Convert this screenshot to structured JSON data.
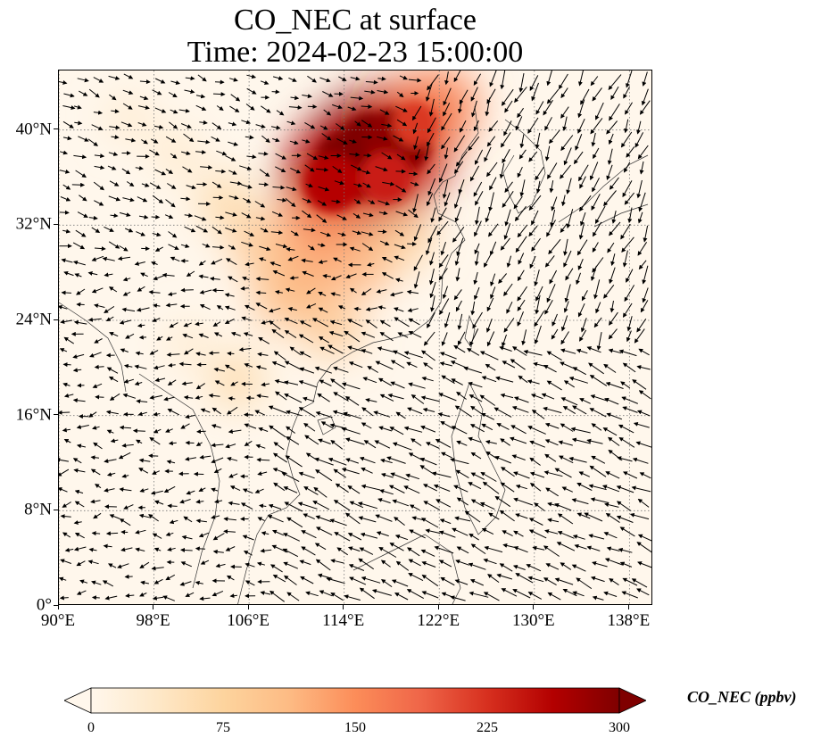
{
  "title_line1": "CO_NEC at surface",
  "title_line2": "Time: 2024-02-23 15:00:00",
  "map": {
    "lon_range": [
      90,
      140
    ],
    "lat_range": [
      0,
      45
    ],
    "lat_ticks": [
      {
        "value": 0,
        "label": "0°"
      },
      {
        "value": 8,
        "label": "8°N"
      },
      {
        "value": 16,
        "label": "16°N"
      },
      {
        "value": 24,
        "label": "24°N"
      },
      {
        "value": 32,
        "label": "32°N"
      },
      {
        "value": 40,
        "label": "40°N"
      }
    ],
    "lon_ticks": [
      {
        "value": 90,
        "label": "90°E"
      },
      {
        "value": 98,
        "label": "98°E"
      },
      {
        "value": 106,
        "label": "106°E"
      },
      {
        "value": 114,
        "label": "114°E"
      },
      {
        "value": 122,
        "label": "122°E"
      },
      {
        "value": 130,
        "label": "130°E"
      },
      {
        "value": 138,
        "label": "138°E"
      }
    ],
    "gridlines": true,
    "background_color": "#fff7ec",
    "vector_field": "wind arrows"
  },
  "colorbar": {
    "label": "CO_NEC (ppbv)",
    "min": 0,
    "max": 300,
    "extend": "both",
    "colormap": "OrRd",
    "ticks": [
      {
        "value": 0,
        "label": "0"
      },
      {
        "value": 75,
        "label": "75"
      },
      {
        "value": 150,
        "label": "150"
      },
      {
        "value": 225,
        "label": "225"
      },
      {
        "value": 300,
        "label": "300"
      }
    ],
    "stops": [
      "#fff7ec",
      "#fee8c8",
      "#fdd49e",
      "#fdbb84",
      "#fc8d59",
      "#ef6548",
      "#d7301f",
      "#b30000",
      "#7f0000"
    ]
  },
  "concentration_field": [
    {
      "lon": 116.5,
      "lat": 38.5,
      "value": 300
    },
    {
      "lon": 114.5,
      "lat": 37.0,
      "value": 300
    },
    {
      "lon": 118.5,
      "lat": 39.0,
      "value": 290
    },
    {
      "lon": 113.0,
      "lat": 35.5,
      "value": 260
    },
    {
      "lon": 117.5,
      "lat": 36.0,
      "value": 240
    },
    {
      "lon": 120.0,
      "lat": 40.5,
      "value": 220
    },
    {
      "lon": 122.0,
      "lat": 42.0,
      "value": 160
    },
    {
      "lon": 112.0,
      "lat": 32.0,
      "value": 150
    },
    {
      "lon": 111.0,
      "lat": 28.0,
      "value": 130
    },
    {
      "lon": 115.5,
      "lat": 29.0,
      "value": 120
    },
    {
      "lon": 109.0,
      "lat": 26.0,
      "value": 110
    },
    {
      "lon": 113.0,
      "lat": 23.5,
      "value": 95
    },
    {
      "lon": 107.0,
      "lat": 30.5,
      "value": 100
    },
    {
      "lon": 105.0,
      "lat": 19.0,
      "value": 70
    },
    {
      "lon": 104.0,
      "lat": 34.0,
      "value": 70
    },
    {
      "lon": 100.0,
      "lat": 38.0,
      "value": 40
    },
    {
      "lon": 96.0,
      "lat": 41.0,
      "value": 35
    },
    {
      "lon": 119.0,
      "lat": 31.0,
      "value": 85
    },
    {
      "lon": 101.0,
      "lat": 22.0,
      "value": 35
    }
  ]
}
